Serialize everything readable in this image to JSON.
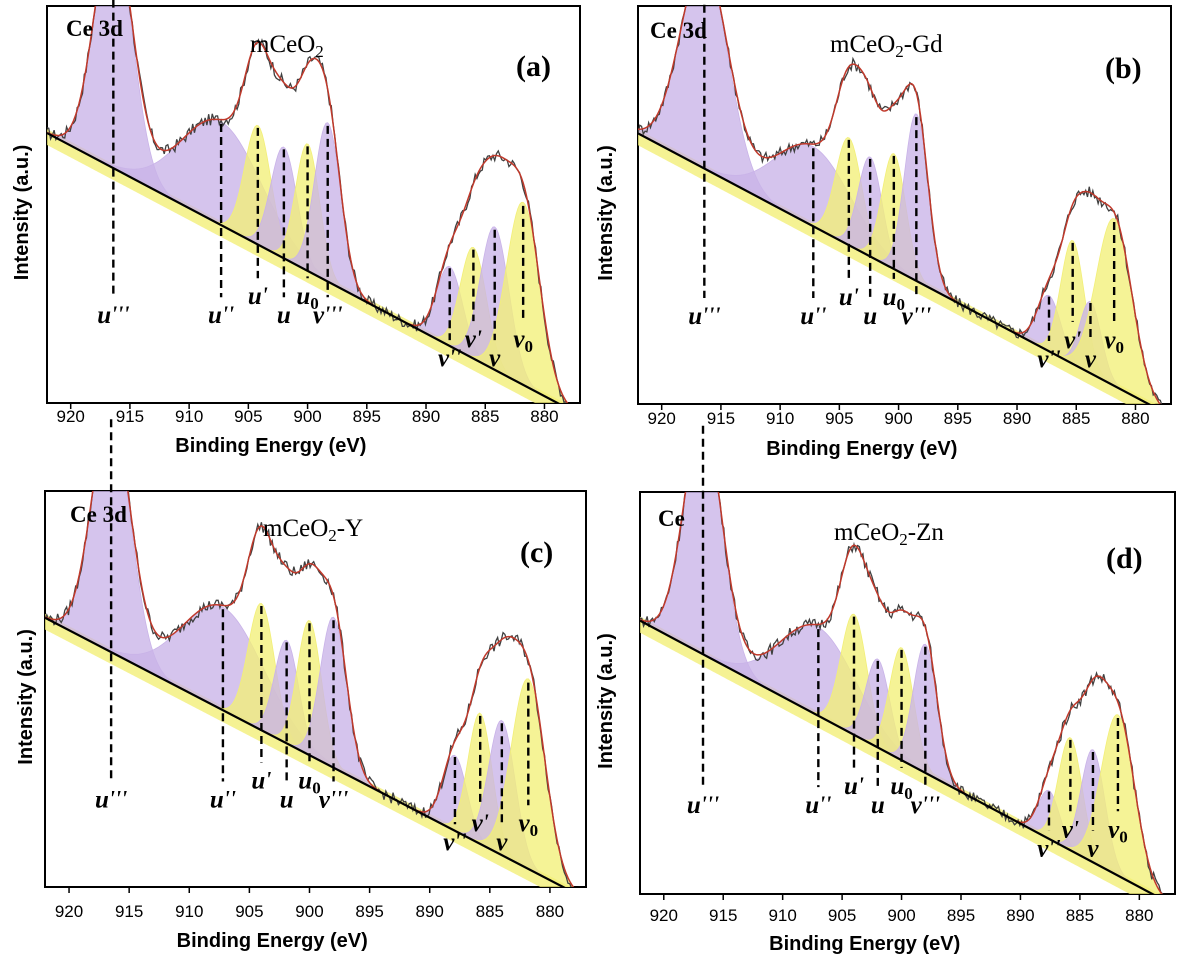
{
  "colors": {
    "u_component": "#c9b3e8",
    "v_component": "#f2ef78",
    "envelope": "#c0392b",
    "raw_data": "#404040",
    "background": "#000000"
  },
  "chart_data": [
    {
      "type": "line",
      "panel_tag": "(a)",
      "core_level": "Ce 3d",
      "sample": "mCeO2",
      "sample_base": "mCeO",
      "sample_sub": "2",
      "sample_suffix": "",
      "xlabel": "Binding Energy (eV)",
      "ylabel": "Intensity (a.u.)",
      "xlim": [
        922,
        877
      ],
      "xticks": [
        920,
        915,
        910,
        905,
        900,
        895,
        890,
        885,
        880
      ],
      "peaks": [
        {
          "label": "u'''",
          "base": "u",
          "primes": "'''",
          "position": 916.4,
          "height": 0.6,
          "width": 1.6,
          "family": "u"
        },
        {
          "label": "u''",
          "base": "u",
          "primes": "''",
          "position": 907.3,
          "height": 0.26,
          "width": 3.4,
          "family": "u"
        },
        {
          "label": "u'",
          "base": "u",
          "primes": "'",
          "position": 904.2,
          "height": 0.3,
          "width": 1.1,
          "family": "v"
        },
        {
          "label": "u",
          "base": "u",
          "primes": "",
          "position": 902.0,
          "height": 0.28,
          "width": 1.1,
          "family": "u"
        },
        {
          "label": "u0",
          "base": "u",
          "primes": "0",
          "position": 900.0,
          "height": 0.32,
          "width": 1.0,
          "family": "v"
        },
        {
          "label": "v'''",
          "base": "v",
          "primes": "'''",
          "position": 898.3,
          "height": 0.4,
          "width": 1.1,
          "family": "u"
        },
        {
          "label": "v''",
          "base": "v",
          "primes": "''",
          "position": 888.0,
          "height": 0.2,
          "width": 1.1,
          "family": "u"
        },
        {
          "label": "v'",
          "base": "v",
          "primes": "'",
          "position": 886.0,
          "height": 0.28,
          "width": 1.1,
          "family": "v"
        },
        {
          "label": "v",
          "base": "v",
          "primes": "",
          "position": 884.2,
          "height": 0.36,
          "width": 1.2,
          "family": "u"
        },
        {
          "label": "v0",
          "base": "v",
          "primes": "0",
          "position": 881.8,
          "height": 0.46,
          "width": 1.4,
          "family": "v"
        }
      ]
    },
    {
      "type": "line",
      "panel_tag": "(b)",
      "core_level": "Ce 3d",
      "sample": "mCeO2-Gd",
      "sample_base": "mCeO",
      "sample_sub": "2",
      "sample_suffix": "-Gd",
      "xlabel": "Binding Energy (eV)",
      "ylabel": "Intensity (a.u.)",
      "xlim": [
        922,
        877
      ],
      "xticks": [
        920,
        915,
        910,
        905,
        900,
        895,
        890,
        885,
        880
      ],
      "peaks": [
        {
          "label": "u'''",
          "base": "u",
          "primes": "'''",
          "position": 916.4,
          "height": 0.52,
          "width": 2.0,
          "family": "u"
        },
        {
          "label": "u''",
          "base": "u",
          "primes": "''",
          "position": 907.2,
          "height": 0.2,
          "width": 3.2,
          "family": "u"
        },
        {
          "label": "u'",
          "base": "u",
          "primes": "'",
          "position": 904.2,
          "height": 0.27,
          "width": 1.1,
          "family": "v"
        },
        {
          "label": "u",
          "base": "u",
          "primes": "",
          "position": 902.4,
          "height": 0.25,
          "width": 1.0,
          "family": "u"
        },
        {
          "label": "u0",
          "base": "u",
          "primes": "0",
          "position": 900.4,
          "height": 0.29,
          "width": 1.0,
          "family": "v"
        },
        {
          "label": "v'''",
          "base": "v",
          "primes": "'''",
          "position": 898.5,
          "height": 0.42,
          "width": 1.0,
          "family": "u"
        },
        {
          "label": "v''",
          "base": "v",
          "primes": "''",
          "position": 887.3,
          "height": 0.14,
          "width": 1.0,
          "family": "u"
        },
        {
          "label": "v'",
          "base": "v",
          "primes": "'",
          "position": 885.3,
          "height": 0.31,
          "width": 1.0,
          "family": "v"
        },
        {
          "label": "v",
          "base": "v",
          "primes": "",
          "position": 883.8,
          "height": 0.18,
          "width": 0.9,
          "family": "u"
        },
        {
          "label": "v0",
          "base": "v",
          "primes": "0",
          "position": 881.8,
          "height": 0.42,
          "width": 1.5,
          "family": "v"
        }
      ]
    },
    {
      "type": "line",
      "panel_tag": "(c)",
      "core_level": "Ce 3d",
      "sample": "mCeO2-Y",
      "sample_base": "mCeO",
      "sample_sub": "2",
      "sample_suffix": "-Y",
      "xlabel": "Binding Energy (eV)",
      "ylabel": "Intensity (a.u.)",
      "xlim": [
        922,
        877
      ],
      "xticks": [
        920,
        915,
        910,
        905,
        900,
        895,
        890,
        885,
        880
      ],
      "peaks": [
        {
          "label": "u'''",
          "base": "u",
          "primes": "'''",
          "position": 916.5,
          "height": 0.6,
          "width": 1.6,
          "family": "u"
        },
        {
          "label": "u''",
          "base": "u",
          "primes": "''",
          "position": 907.2,
          "height": 0.26,
          "width": 3.4,
          "family": "u"
        },
        {
          "label": "u'",
          "base": "u",
          "primes": "'",
          "position": 904.0,
          "height": 0.32,
          "width": 1.1,
          "family": "v"
        },
        {
          "label": "u",
          "base": "u",
          "primes": "",
          "position": 901.9,
          "height": 0.26,
          "width": 1.0,
          "family": "u"
        },
        {
          "label": "u0",
          "base": "u",
          "primes": "0",
          "position": 900.0,
          "height": 0.34,
          "width": 1.0,
          "family": "v"
        },
        {
          "label": "v'''",
          "base": "v",
          "primes": "'''",
          "position": 898.0,
          "height": 0.38,
          "width": 1.1,
          "family": "u"
        },
        {
          "label": "v''",
          "base": "v",
          "primes": "''",
          "position": 887.9,
          "height": 0.19,
          "width": 1.0,
          "family": "u"
        },
        {
          "label": "v'",
          "base": "v",
          "primes": "'",
          "position": 885.8,
          "height": 0.33,
          "width": 1.0,
          "family": "v"
        },
        {
          "label": "v",
          "base": "v",
          "primes": "",
          "position": 884.0,
          "height": 0.34,
          "width": 1.1,
          "family": "u"
        },
        {
          "label": "v0",
          "base": "v",
          "primes": "0",
          "position": 881.8,
          "height": 0.48,
          "width": 1.4,
          "family": "v"
        }
      ]
    },
    {
      "type": "line",
      "panel_tag": "(d)",
      "core_level": "Ce",
      "sample": "mCeO2-Zn",
      "sample_base": "mCeO",
      "sample_sub": "2",
      "sample_suffix": "-Zn",
      "xlabel": "Binding Energy (eV)",
      "ylabel": "Intensity (a.u.)",
      "xlim": [
        922,
        877
      ],
      "xticks": [
        920,
        915,
        910,
        905,
        900,
        895,
        890,
        885,
        880
      ],
      "peaks": [
        {
          "label": "u'''",
          "base": "u",
          "primes": "'''",
          "position": 916.7,
          "height": 0.58,
          "width": 1.6,
          "family": "u"
        },
        {
          "label": "u''",
          "base": "u",
          "primes": "''",
          "position": 907.0,
          "height": 0.22,
          "width": 3.2,
          "family": "u"
        },
        {
          "label": "u'",
          "base": "u",
          "primes": "'",
          "position": 904.0,
          "height": 0.3,
          "width": 1.1,
          "family": "v"
        },
        {
          "label": "u",
          "base": "u",
          "primes": "",
          "position": 902.0,
          "height": 0.22,
          "width": 1.0,
          "family": "u"
        },
        {
          "label": "u0",
          "base": "u",
          "primes": "0",
          "position": 900.0,
          "height": 0.28,
          "width": 1.0,
          "family": "v"
        },
        {
          "label": "v'''",
          "base": "v",
          "primes": "'''",
          "position": 898.0,
          "height": 0.32,
          "width": 1.0,
          "family": "u"
        },
        {
          "label": "v''",
          "base": "v",
          "primes": "''",
          "position": 887.6,
          "height": 0.12,
          "width": 0.9,
          "family": "u"
        },
        {
          "label": "v'",
          "base": "v",
          "primes": "'",
          "position": 885.8,
          "height": 0.28,
          "width": 1.0,
          "family": "v"
        },
        {
          "label": "v",
          "base": "v",
          "primes": "",
          "position": 883.9,
          "height": 0.28,
          "width": 1.0,
          "family": "u"
        },
        {
          "label": "v0",
          "base": "v",
          "primes": "0",
          "position": 881.8,
          "height": 0.4,
          "width": 1.4,
          "family": "v"
        }
      ]
    }
  ]
}
